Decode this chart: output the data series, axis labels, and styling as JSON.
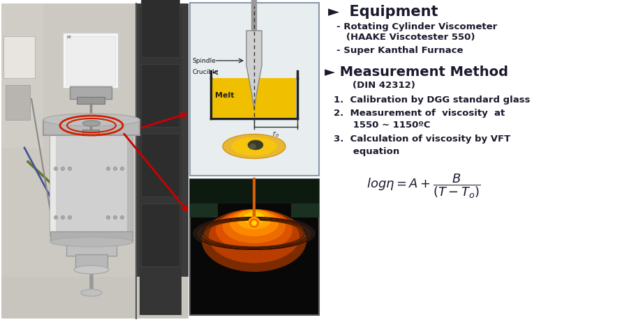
{
  "bg_color": "#ffffff",
  "title_equipment": "►  Equipment",
  "bullet1_line1": "- Rotating Cylinder Viscometer",
  "bullet1_line2": "   (HAAKE Viscotester 550)",
  "bullet2": "- Super Kanthal Furnace",
  "title_method": "► Measurement Method",
  "din": "(DIN 42312)",
  "item1": "1.  Calibration by DGG standard glass",
  "item2_line1": "2.  Measurement of  viscosity  at",
  "item2_line2": "      1550 ∼ 1150ºC",
  "item3_line1": "3.  Calculation of viscosity by VFT",
  "item3_line2": "      equation",
  "formula": "$log\\eta = A + \\dfrac{B}{(T - T_o)}$",
  "text_color": "#1a1a2e",
  "arrow_color": "#cc0000",
  "photo_bg": "#c8c2b8",
  "photo_wall_left": "#d8d4cc",
  "photo_wall_right": "#484848",
  "cylinder_color": "#c8c8c8",
  "white_box": "#f0f0f0"
}
